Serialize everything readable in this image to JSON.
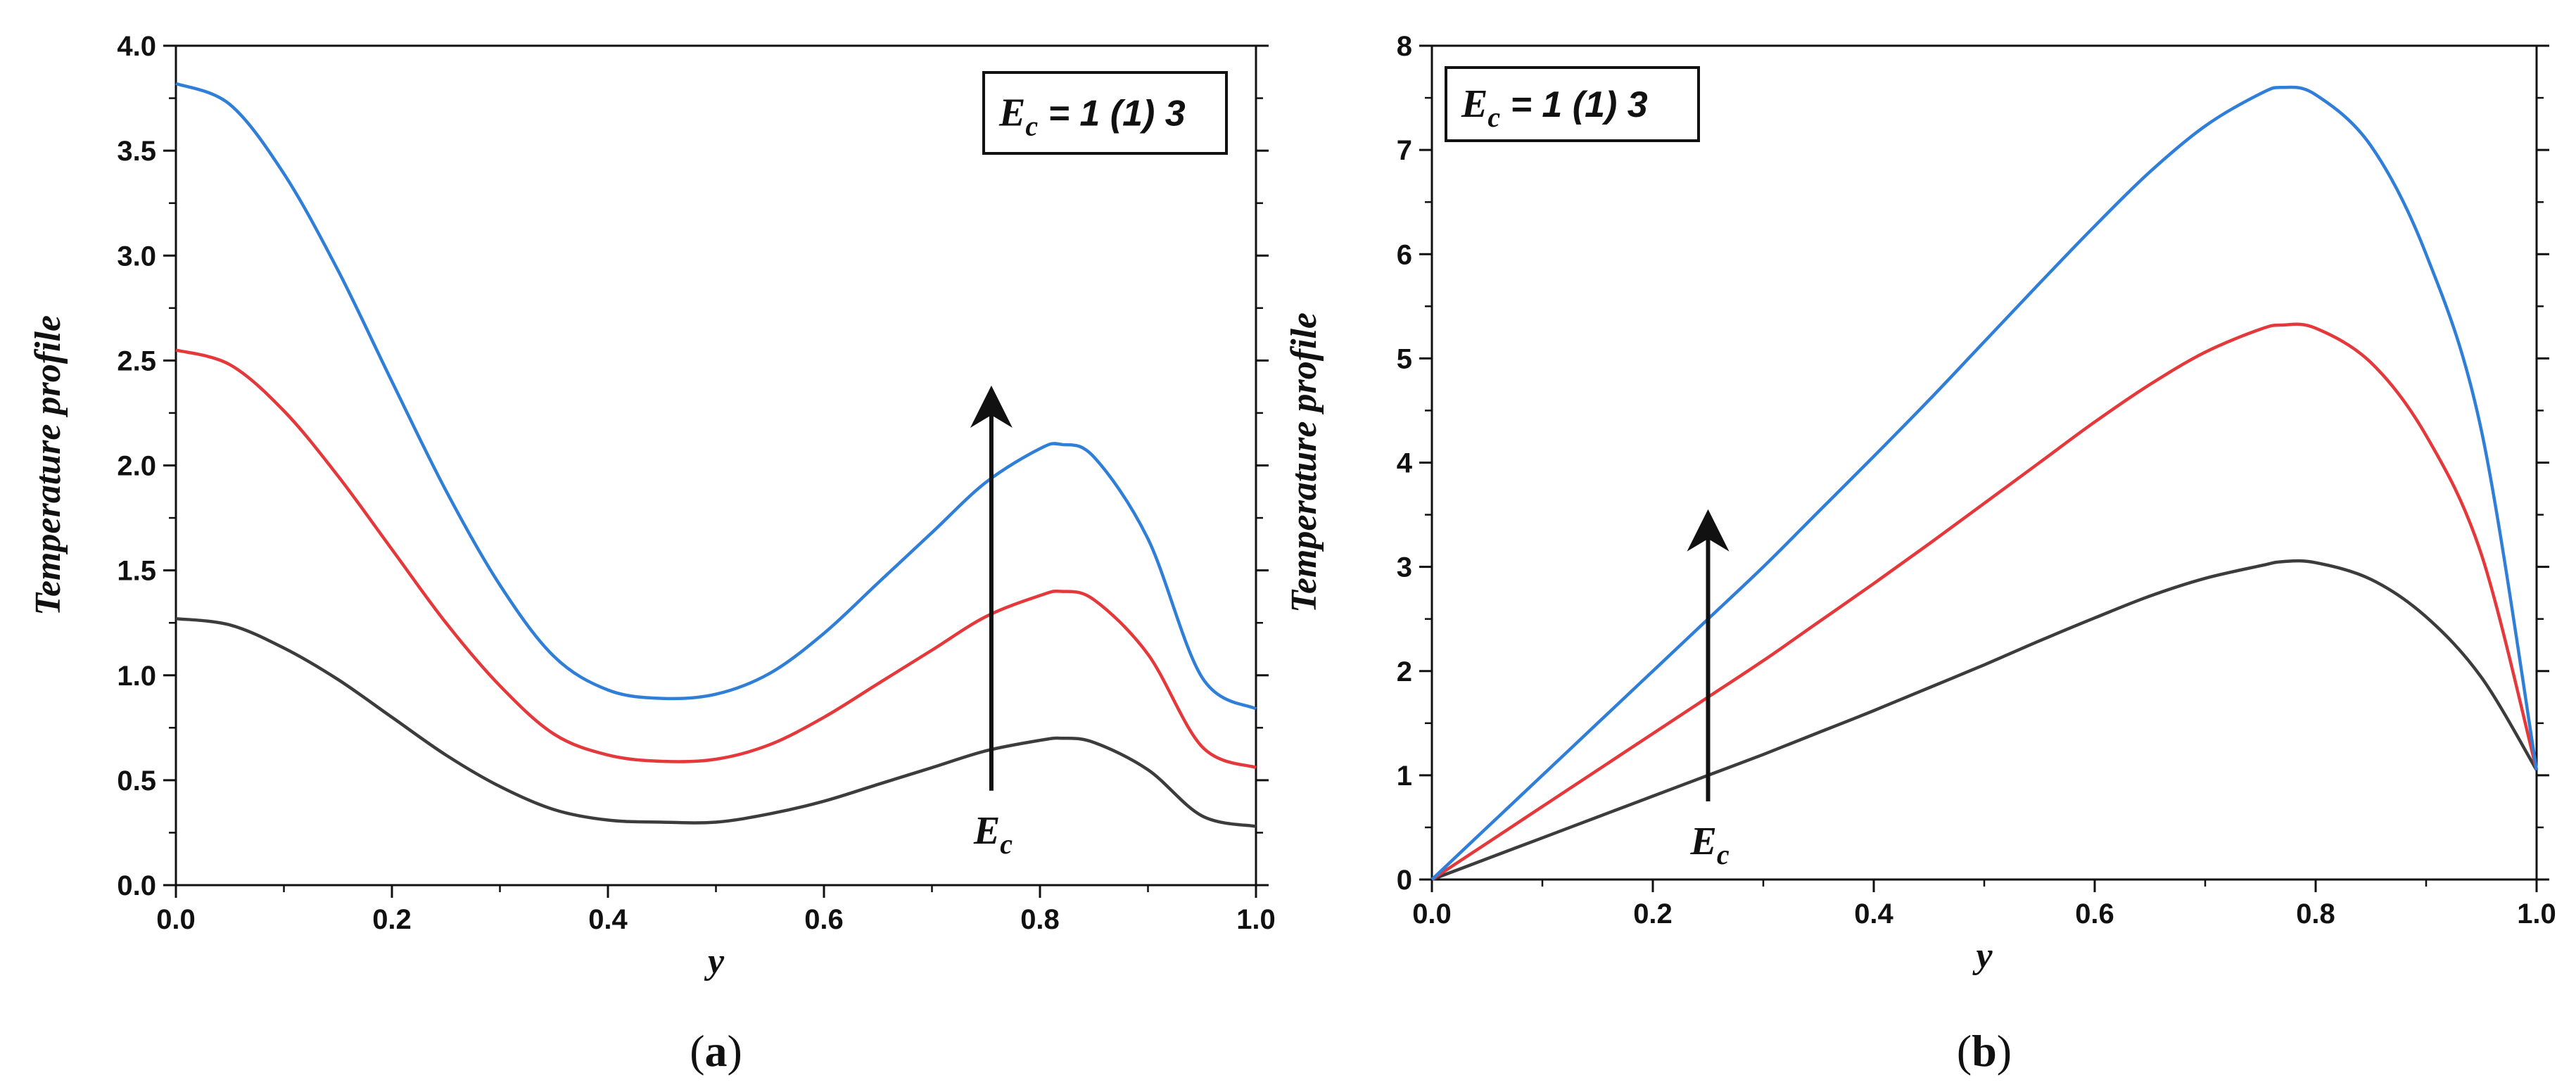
{
  "colors": {
    "series1": "#3c3c3c",
    "series2": "#e5383b",
    "series3": "#2f7ed8",
    "axis": "#111111"
  },
  "chart_data": [
    {
      "type": "line",
      "panel_label": "a",
      "xlabel": "y",
      "ylabel": "Temperature profile",
      "xlim": [
        0.0,
        1.0
      ],
      "ylim": [
        0.0,
        4.0
      ],
      "xticks": [
        "0.0",
        "0.2",
        "0.4",
        "0.6",
        "0.8",
        "1.0"
      ],
      "yticks": [
        "0.0",
        "0.5",
        "1.0",
        "1.5",
        "2.0",
        "2.5",
        "3.0",
        "3.5",
        "4.0"
      ],
      "legend": {
        "symbol": "E",
        "sub": "c",
        "rest": " = 1 (1) 3"
      },
      "arrow_label": {
        "symbol": "E",
        "sub": "c"
      },
      "arrow": {
        "x": 0.755,
        "y_from": 0.45,
        "y_to": 2.28
      },
      "x": [
        0.0,
        0.05,
        0.1,
        0.15,
        0.2,
        0.25,
        0.3,
        0.35,
        0.4,
        0.45,
        0.5,
        0.55,
        0.6,
        0.65,
        0.7,
        0.75,
        0.8,
        0.82,
        0.85,
        0.9,
        0.95,
        1.0
      ],
      "series": [
        {
          "name": "Ec = 1",
          "color": "#3c3c3c",
          "values": [
            1.27,
            1.24,
            1.13,
            0.98,
            0.8,
            0.62,
            0.47,
            0.36,
            0.31,
            0.3,
            0.3,
            0.34,
            0.4,
            0.48,
            0.56,
            0.64,
            0.69,
            0.7,
            0.68,
            0.55,
            0.33,
            0.28
          ]
        },
        {
          "name": "Ec = 2",
          "color": "#e5383b",
          "values": [
            2.55,
            2.48,
            2.26,
            1.95,
            1.6,
            1.25,
            0.95,
            0.72,
            0.62,
            0.59,
            0.6,
            0.67,
            0.8,
            0.96,
            1.12,
            1.28,
            1.38,
            1.4,
            1.36,
            1.1,
            0.66,
            0.56
          ]
        },
        {
          "name": "Ec = 3",
          "color": "#2f7ed8",
          "values": [
            3.82,
            3.72,
            3.39,
            2.93,
            2.4,
            1.88,
            1.43,
            1.09,
            0.93,
            0.89,
            0.91,
            1.01,
            1.2,
            1.44,
            1.68,
            1.92,
            2.08,
            2.1,
            2.04,
            1.65,
            0.99,
            0.84
          ]
        }
      ]
    },
    {
      "type": "line",
      "panel_label": "b",
      "xlabel": "y",
      "ylabel": "Temperature profile",
      "xlim": [
        0.0,
        1.0
      ],
      "ylim": [
        0,
        8
      ],
      "xticks": [
        "0.0",
        "0.2",
        "0.4",
        "0.6",
        "0.8",
        "1.0"
      ],
      "yticks": [
        "0",
        "1",
        "2",
        "3",
        "4",
        "5",
        "6",
        "7",
        "8"
      ],
      "legend": {
        "symbol": "E",
        "sub": "c",
        "rest": " = 1 (1) 3"
      },
      "arrow_label": {
        "symbol": "E",
        "sub": "c"
      },
      "arrow": {
        "x": 0.25,
        "y_from": 0.75,
        "y_to": 3.35
      },
      "x": [
        0.0,
        0.05,
        0.1,
        0.15,
        0.2,
        0.25,
        0.3,
        0.35,
        0.4,
        0.45,
        0.5,
        0.55,
        0.6,
        0.65,
        0.7,
        0.75,
        0.77,
        0.8,
        0.85,
        0.9,
        0.95,
        1.0
      ],
      "series": [
        {
          "name": "Ec = 1",
          "color": "#3c3c3c",
          "values": [
            0.0,
            0.2,
            0.4,
            0.6,
            0.8,
            1.0,
            1.2,
            1.41,
            1.62,
            1.84,
            2.06,
            2.29,
            2.51,
            2.72,
            2.89,
            3.01,
            3.05,
            3.04,
            2.88,
            2.52,
            1.94,
            1.05
          ]
        },
        {
          "name": "Ec = 2",
          "color": "#e5383b",
          "values": [
            0.0,
            0.35,
            0.7,
            1.05,
            1.4,
            1.75,
            2.1,
            2.47,
            2.84,
            3.22,
            3.61,
            4.0,
            4.39,
            4.75,
            5.06,
            5.28,
            5.32,
            5.29,
            4.96,
            4.26,
            3.12,
            1.05
          ]
        },
        {
          "name": "Ec = 3",
          "color": "#2f7ed8",
          "values": [
            0.0,
            0.5,
            1.0,
            1.5,
            2.0,
            2.5,
            3.0,
            3.53,
            4.06,
            4.6,
            5.16,
            5.72,
            6.27,
            6.79,
            7.23,
            7.54,
            7.6,
            7.53,
            7.04,
            6.0,
            4.31,
            1.05
          ]
        }
      ]
    }
  ]
}
